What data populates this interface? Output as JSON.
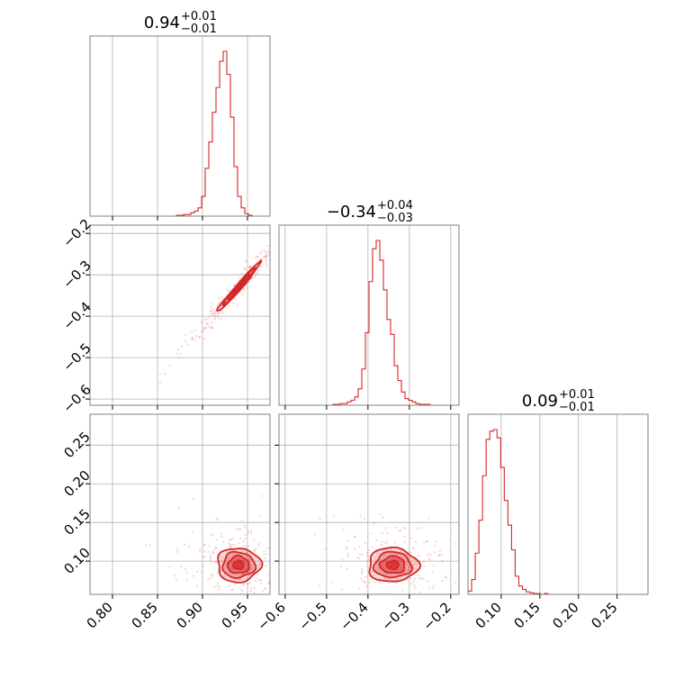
{
  "colors": {
    "accent": "#d62728",
    "grid": "#b0b0b0",
    "frame": "#808080"
  },
  "params": [
    {
      "median": "0.94",
      "plus": "+0.01",
      "minus": "−0.01"
    },
    {
      "median": "−0.34",
      "plus": "+0.04",
      "minus": "−0.03"
    },
    {
      "median": "0.09",
      "plus": "+0.01",
      "minus": "−0.01"
    }
  ],
  "chart_data": {
    "type": "corner",
    "grid": true,
    "axes": [
      {
        "lim": [
          0.775,
          0.975
        ],
        "ticks": [
          0.8,
          0.85,
          0.9,
          0.95
        ],
        "tick_labels": [
          "0.80",
          "0.85",
          "0.90",
          "0.95"
        ]
      },
      {
        "lim": [
          -0.615,
          -0.18
        ],
        "ticks": [
          -0.6,
          -0.5,
          -0.4,
          -0.3,
          -0.2
        ],
        "tick_labels": [
          "−0.6",
          "−0.5",
          "−0.4",
          "−0.3",
          "−0.2"
        ]
      },
      {
        "lim": [
          0.057,
          0.29
        ],
        "ticks": [
          0.1,
          0.15,
          0.2,
          0.25
        ],
        "tick_labels": [
          "0.10",
          "0.15",
          "0.20",
          "0.25"
        ]
      }
    ],
    "histograms": [
      {
        "bin_start": 0.775,
        "bin_width": 0.004,
        "counts": [
          0,
          0,
          0,
          0,
          0,
          0,
          0,
          0,
          0,
          0,
          0,
          0,
          0,
          0,
          0,
          0,
          0,
          0,
          0,
          0,
          0,
          0,
          0,
          0,
          0.005,
          0.005,
          0.01,
          0.01,
          0.02,
          0.03,
          0.05,
          0.12,
          0.29,
          0.45,
          0.63,
          0.78,
          0.94,
          1.0,
          0.86,
          0.6,
          0.3,
          0.12,
          0.05,
          0.015,
          0.005,
          0,
          0,
          0,
          0,
          0
        ]
      },
      {
        "bin_start": -0.615,
        "bin_width": 0.0087,
        "counts": [
          0,
          0,
          0,
          0,
          0,
          0,
          0,
          0,
          0,
          0,
          0,
          0,
          0,
          0,
          0,
          0.005,
          0.005,
          0.01,
          0.01,
          0.02,
          0.03,
          0.05,
          0.1,
          0.22,
          0.44,
          0.75,
          0.95,
          1.0,
          0.88,
          0.7,
          0.52,
          0.43,
          0.24,
          0.15,
          0.08,
          0.04,
          0.03,
          0.02,
          0.01,
          0.005,
          0.005,
          0.005,
          0,
          0,
          0,
          0,
          0,
          0,
          0,
          0
        ]
      },
      {
        "bin_start": 0.057,
        "bin_width": 0.0047,
        "counts": [
          0.02,
          0.09,
          0.25,
          0.45,
          0.72,
          0.94,
          0.99,
          1.0,
          0.95,
          0.77,
          0.57,
          0.42,
          0.27,
          0.11,
          0.05,
          0.03,
          0.015,
          0.01,
          0.005,
          0.005,
          0,
          0.005,
          0,
          0,
          0,
          0,
          0,
          0,
          0,
          0,
          0,
          0,
          0,
          0,
          0,
          0,
          0,
          0,
          0,
          0,
          0,
          0,
          0,
          0,
          0,
          0,
          0,
          0,
          0,
          0
        ]
      }
    ],
    "scatter_panels": [
      {
        "x_param": 0,
        "y_param": 1,
        "center": [
          0.94,
          -0.33
        ],
        "sd": [
          0.012,
          0.03
        ],
        "rho": 0.985
      },
      {
        "x_param": 0,
        "y_param": 2,
        "center": [
          0.94,
          0.095
        ],
        "sd": [
          0.012,
          0.011
        ],
        "rho": 0.0
      },
      {
        "x_param": 1,
        "y_param": 2,
        "center": [
          -0.34,
          0.095
        ],
        "sd": [
          0.03,
          0.011
        ],
        "rho": 0.0
      }
    ]
  }
}
